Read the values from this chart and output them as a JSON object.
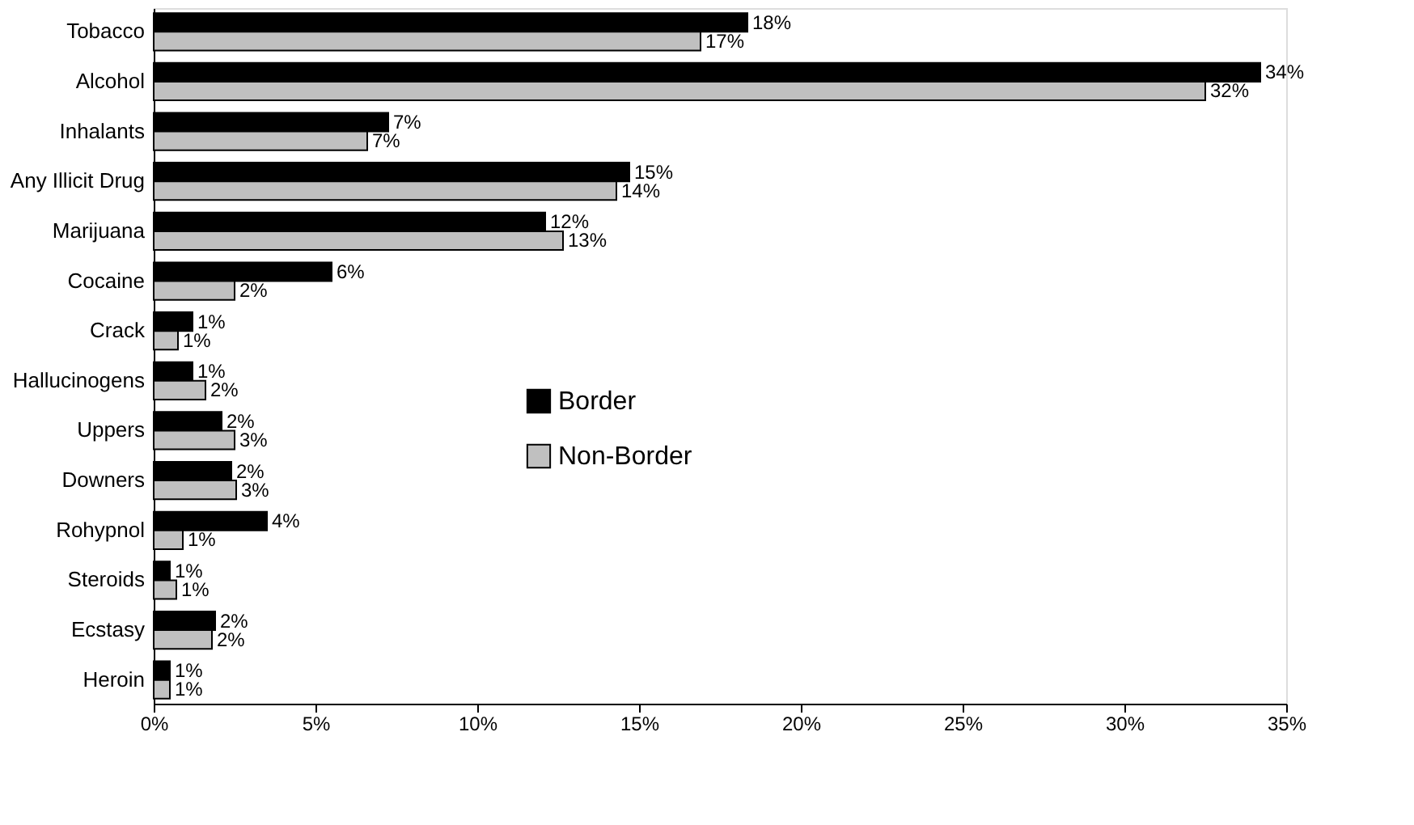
{
  "chart_data": {
    "type": "bar",
    "orientation": "horizontal",
    "categories": [
      "Tobacco",
      "Alcohol",
      "Inhalants",
      "Any Illicit Drug",
      "Marijuana",
      "Cocaine",
      "Crack",
      "Hallucinogens",
      "Uppers",
      "Downers",
      "Rohypnol",
      "Steroids",
      "Ecstasy",
      "Heroin"
    ],
    "series": [
      {
        "name": "Border",
        "color": "#000000",
        "values": [
          18.35,
          34.2,
          7.25,
          14.7,
          12.1,
          5.5,
          1.2,
          1.2,
          2.1,
          2.4,
          3.5,
          0.5,
          1.9,
          0.5
        ],
        "value_labels": [
          "18%",
          "34%",
          "7%",
          "15%",
          "12%",
          "6%",
          "1%",
          "1%",
          "2%",
          "2%",
          "4%",
          "1%",
          "2%",
          "1%"
        ]
      },
      {
        "name": "Non-Border",
        "color": "#c0c0c0",
        "values": [
          16.9,
          32.5,
          6.6,
          14.3,
          12.65,
          2.5,
          0.75,
          1.6,
          2.5,
          2.55,
          0.9,
          0.7,
          1.8,
          0.5
        ],
        "value_labels": [
          "17%",
          "32%",
          "7%",
          "14%",
          "13%",
          "2%",
          "1%",
          "2%",
          "3%",
          "3%",
          "1%",
          "1%",
          "2%",
          "1%"
        ]
      }
    ],
    "xlim": [
      0,
      35
    ],
    "xticks": [
      {
        "value": 0,
        "label": "0%"
      },
      {
        "value": 5,
        "label": "5%"
      },
      {
        "value": 10,
        "label": "10%"
      },
      {
        "value": 15,
        "label": "15%"
      },
      {
        "value": 20,
        "label": "20%"
      },
      {
        "value": 25,
        "label": "25%"
      },
      {
        "value": 30,
        "label": "30%"
      },
      {
        "value": 35,
        "label": "35%"
      }
    ],
    "legend": "bottom left",
    "grid": false
  }
}
